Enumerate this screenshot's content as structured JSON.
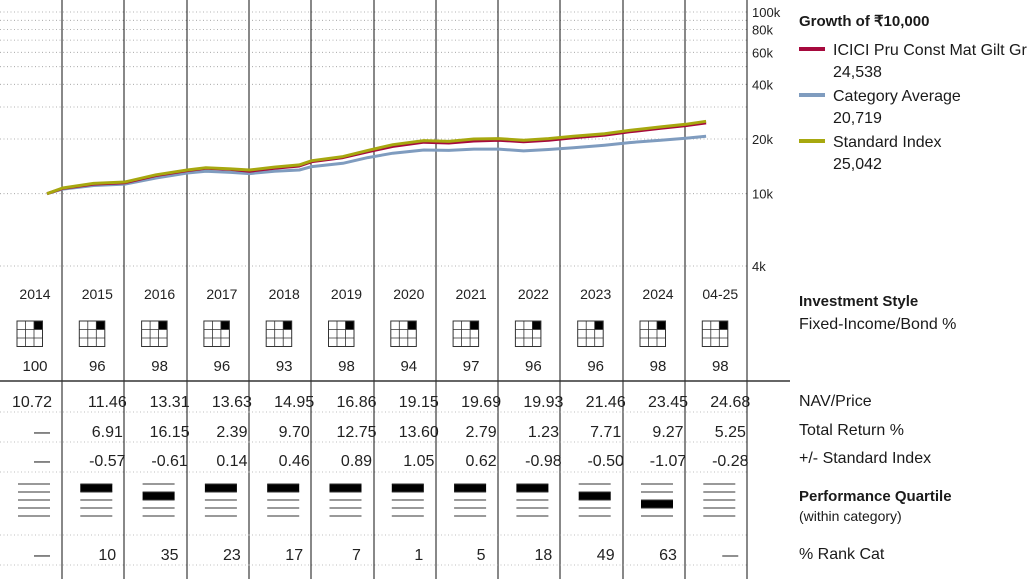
{
  "growth": {
    "title": "Growth of ₹10,000",
    "legend": [
      {
        "name": "ICICI Pru Const Mat Gilt Gr",
        "value": "24,538",
        "color": "#a6093d"
      },
      {
        "name": "Category Average",
        "value": "20,719",
        "color": "#7f9cbf"
      },
      {
        "name": "Standard Index",
        "value": "25,042",
        "color": "#a7a80f"
      }
    ]
  },
  "chart_data": {
    "type": "line",
    "yscale": "log",
    "ylim": [
      4000,
      100000
    ],
    "ytick_labels": [
      "100k",
      "80k",
      "60k",
      "40k",
      "20k",
      "10k",
      "4k"
    ],
    "ytick_values": [
      100000,
      80000,
      60000,
      40000,
      20000,
      10000,
      4000
    ],
    "x_start_year": 2014.75,
    "x_end_year": 2025.33,
    "series": [
      {
        "name": "ICICI Pru Const Mat Gilt Gr",
        "color": "#a6093d",
        "points": [
          [
            2014.75,
            10000
          ],
          [
            2015.0,
            10700
          ],
          [
            2015.5,
            11300
          ],
          [
            2016.0,
            11500
          ],
          [
            2016.5,
            12600
          ],
          [
            2017.0,
            13400
          ],
          [
            2017.3,
            13800
          ],
          [
            2017.7,
            13600
          ],
          [
            2018.0,
            13300
          ],
          [
            2018.4,
            13800
          ],
          [
            2018.8,
            14200
          ],
          [
            2019.0,
            15000
          ],
          [
            2019.5,
            15800
          ],
          [
            2019.9,
            17000
          ],
          [
            2020.3,
            18200
          ],
          [
            2020.8,
            19200
          ],
          [
            2021.2,
            19000
          ],
          [
            2021.6,
            19500
          ],
          [
            2022.0,
            19700
          ],
          [
            2022.4,
            19300
          ],
          [
            2022.8,
            19700
          ],
          [
            2023.2,
            20300
          ],
          [
            2023.7,
            21000
          ],
          [
            2024.1,
            21900
          ],
          [
            2024.6,
            22900
          ],
          [
            2025.0,
            23700
          ],
          [
            2025.33,
            24538
          ]
        ]
      },
      {
        "name": "Category Average",
        "color": "#7f9cbf",
        "points": [
          [
            2014.75,
            10000
          ],
          [
            2015.0,
            10600
          ],
          [
            2015.5,
            11100
          ],
          [
            2016.0,
            11300
          ],
          [
            2016.5,
            12200
          ],
          [
            2017.0,
            13000
          ],
          [
            2017.3,
            13300
          ],
          [
            2017.7,
            13100
          ],
          [
            2018.0,
            12900
          ],
          [
            2018.4,
            13300
          ],
          [
            2018.8,
            13500
          ],
          [
            2019.0,
            14100
          ],
          [
            2019.5,
            14700
          ],
          [
            2019.9,
            15800
          ],
          [
            2020.3,
            16700
          ],
          [
            2020.8,
            17400
          ],
          [
            2021.2,
            17300
          ],
          [
            2021.6,
            17600
          ],
          [
            2022.0,
            17600
          ],
          [
            2022.4,
            17200
          ],
          [
            2022.8,
            17500
          ],
          [
            2023.2,
            17900
          ],
          [
            2023.7,
            18500
          ],
          [
            2024.1,
            19100
          ],
          [
            2024.6,
            19700
          ],
          [
            2025.0,
            20200
          ],
          [
            2025.33,
            20719
          ]
        ]
      },
      {
        "name": "Standard Index",
        "color": "#a7a80f",
        "points": [
          [
            2014.75,
            10000
          ],
          [
            2015.0,
            10750
          ],
          [
            2015.5,
            11400
          ],
          [
            2016.0,
            11600
          ],
          [
            2016.5,
            12700
          ],
          [
            2017.0,
            13500
          ],
          [
            2017.3,
            13900
          ],
          [
            2017.7,
            13700
          ],
          [
            2018.0,
            13500
          ],
          [
            2018.4,
            14000
          ],
          [
            2018.8,
            14400
          ],
          [
            2019.0,
            15200
          ],
          [
            2019.5,
            16000
          ],
          [
            2019.9,
            17300
          ],
          [
            2020.3,
            18600
          ],
          [
            2020.8,
            19600
          ],
          [
            2021.2,
            19400
          ],
          [
            2021.6,
            20000
          ],
          [
            2022.0,
            20100
          ],
          [
            2022.4,
            19700
          ],
          [
            2022.8,
            20100
          ],
          [
            2023.2,
            20700
          ],
          [
            2023.7,
            21400
          ],
          [
            2024.1,
            22300
          ],
          [
            2024.6,
            23300
          ],
          [
            2025.0,
            24100
          ],
          [
            2025.33,
            25042
          ]
        ]
      }
    ]
  },
  "columns": [
    {
      "year": "2014",
      "style_value": "100",
      "nav": "10.72",
      "total_return": "—",
      "vs_index": "—",
      "rank": "—",
      "quartile": 0
    },
    {
      "year": "2015",
      "style_value": "96",
      "nav": "11.46",
      "total_return": "6.91",
      "vs_index": "-0.57",
      "rank": "10",
      "quartile": 1
    },
    {
      "year": "2016",
      "style_value": "98",
      "nav": "13.31",
      "total_return": "16.15",
      "vs_index": "-0.61",
      "rank": "35",
      "quartile": 2
    },
    {
      "year": "2017",
      "style_value": "96",
      "nav": "13.63",
      "total_return": "2.39",
      "vs_index": "0.14",
      "rank": "23",
      "quartile": 1
    },
    {
      "year": "2018",
      "style_value": "93",
      "nav": "14.95",
      "total_return": "9.70",
      "vs_index": "0.46",
      "rank": "17",
      "quartile": 1
    },
    {
      "year": "2019",
      "style_value": "98",
      "nav": "16.86",
      "total_return": "12.75",
      "vs_index": "0.89",
      "rank": "7",
      "quartile": 1
    },
    {
      "year": "2020",
      "style_value": "94",
      "nav": "19.15",
      "total_return": "13.60",
      "vs_index": "1.05",
      "rank": "1",
      "quartile": 1
    },
    {
      "year": "2021",
      "style_value": "97",
      "nav": "19.69",
      "total_return": "2.79",
      "vs_index": "0.62",
      "rank": "5",
      "quartile": 1
    },
    {
      "year": "2022",
      "style_value": "96",
      "nav": "19.93",
      "total_return": "1.23",
      "vs_index": "-0.98",
      "rank": "18",
      "quartile": 1
    },
    {
      "year": "2023",
      "style_value": "96",
      "nav": "21.46",
      "total_return": "7.71",
      "vs_index": "-0.50",
      "rank": "49",
      "quartile": 2
    },
    {
      "year": "2024",
      "style_value": "98",
      "nav": "23.45",
      "total_return": "9.27",
      "vs_index": "-1.07",
      "rank": "63",
      "quartile": 3
    },
    {
      "year": "04-25",
      "style_value": "98",
      "nav": "24.68",
      "total_return": "5.25",
      "vs_index": "-0.28",
      "rank": "—",
      "quartile": 0
    }
  ],
  "labels": {
    "investment_style": "Investment Style",
    "fixed_income": "Fixed-Income/Bond %",
    "nav_price": "NAV/Price",
    "total_return": "Total Return %",
    "vs_index": "+/- Standard Index",
    "performance_quartile": "Performance Quartile",
    "within_category": "(within category)",
    "rank_cat": "% Rank Cat"
  }
}
